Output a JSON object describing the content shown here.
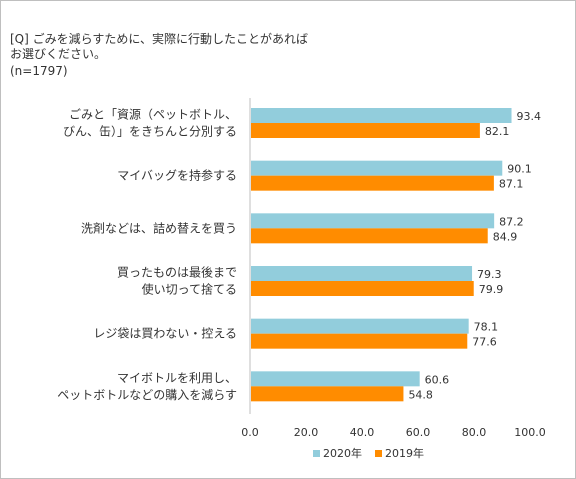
{
  "question": "[Q] ごみを減らすために、実際に行動したことがあれば\nお選びください。",
  "sample": "(n=1797)",
  "colors": {
    "2020": "#92cddc",
    "2019": "#ff8c00"
  },
  "chart_data": {
    "type": "bar",
    "orientation": "horizontal",
    "categories": [
      [
        "ごみと「資源（ペットボトル、",
        "びん、缶）」をきちんと分別する"
      ],
      [
        "マイバッグを持参する"
      ],
      [
        "洗剤などは、詰め替えを買う"
      ],
      [
        "買ったものは最後まで",
        "使い切って捨てる"
      ],
      [
        "レジ袋は買わない・控える"
      ],
      [
        "マイボトルを利用し、",
        "ペットボトルなどの購入を減らす"
      ]
    ],
    "series": [
      {
        "name": "2020年",
        "values": [
          93.4,
          90.1,
          87.2,
          79.3,
          78.1,
          60.6
        ],
        "labels": [
          "93.4",
          "90.1",
          "87.2",
          "79.3",
          "78.1",
          "60.6"
        ]
      },
      {
        "name": "2019年",
        "values": [
          82.1,
          87.1,
          84.9,
          79.9,
          77.6,
          54.8
        ],
        "labels": [
          "82.1",
          "87.1",
          "84.9",
          "79.9",
          "77.6",
          "54.8"
        ]
      }
    ],
    "xlim": [
      0,
      100
    ],
    "ticks": [
      "0.0",
      "20.0",
      "40.0",
      "60.0",
      "80.0",
      "100.0"
    ],
    "tick_values": [
      0,
      20,
      40,
      60,
      80,
      100
    ],
    "legend_position": "bottom"
  }
}
